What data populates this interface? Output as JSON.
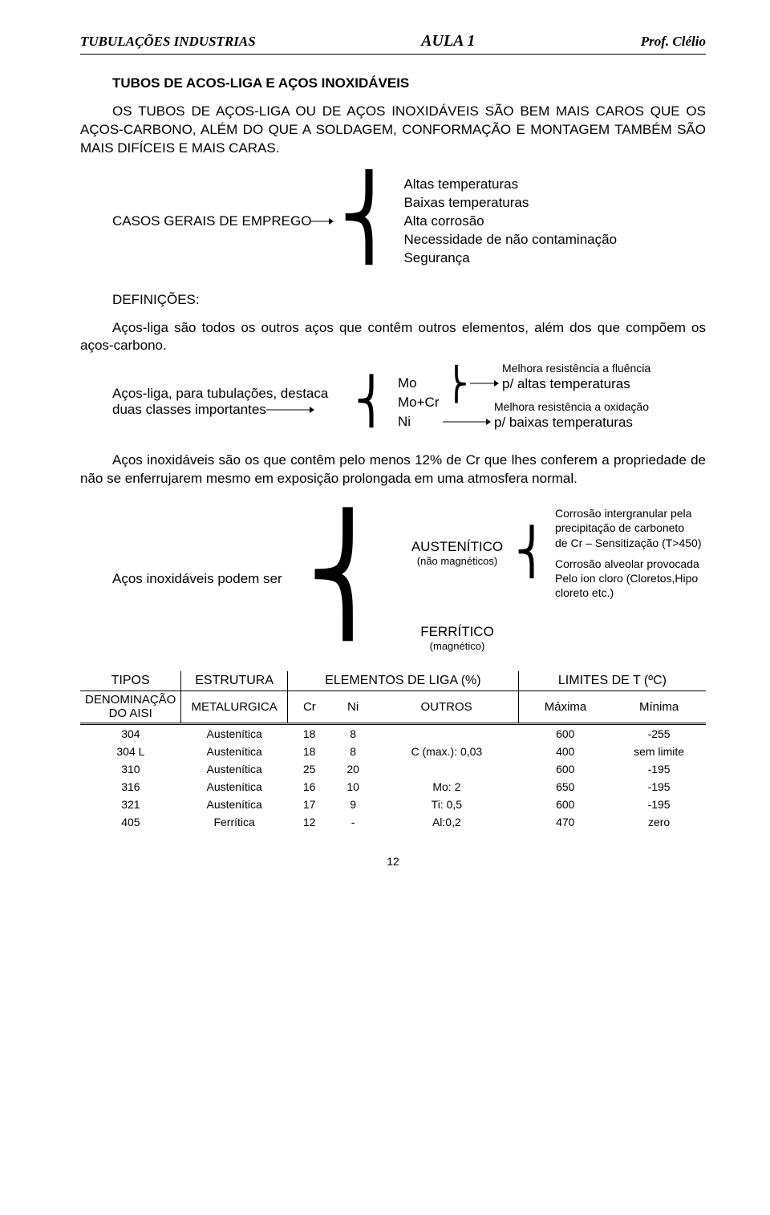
{
  "header": {
    "left": "TUBULAÇÕES INDUSTRIAS",
    "center": "AULA 1",
    "right": "Prof. Clélio"
  },
  "section_title": "TUBOS DE ACOS-LIGA E AÇOS INOXIDÁVEIS",
  "intro_para": "OS TUBOS DE AÇOS-LIGA OU DE AÇOS INOXIDÁVEIS SÃO BEM MAIS CAROS QUE OS AÇOS-CARBONO, ALÉM DO QUE A SOLDAGEM, CONFORMAÇÃO E MONTAGEM TAMBÉM SÃO MAIS DIFÍCEIS E MAIS CARAS.",
  "casos": {
    "label": "CASOS GERAIS DE EMPREGO",
    "items": [
      "Altas temperaturas",
      "Baixas temperaturas",
      "Alta corrosão",
      "Necessidade de não contaminação",
      "Segurança"
    ]
  },
  "definicoes": {
    "title": "DEFINIÇÕES:",
    "para": "Aços-liga são todos os outros aços que contêm outros elementos, além dos que compõem os aços-carbono."
  },
  "classes": {
    "left1": "Aços-liga, para tubulações, destaca",
    "left2": "duas classes importantes",
    "mo": "Mo",
    "mocr": "Mo+Cr",
    "ni": "Ni",
    "note1": "Melhora resistência a fluência",
    "right1": "p/ altas temperaturas",
    "note2": "Melhora resistência a oxidação",
    "right2": "p/ baixas temperaturas"
  },
  "inox_para": "Aços inoxidáveis são os que contêm pelo menos 12% de Cr que lhes conferem a propriedade de não se enferrujarem mesmo em exposição prolongada em uma atmosfera normal.",
  "inox": {
    "left": "Aços inoxidáveis podem ser",
    "aust": "AUSTENÍTICO",
    "aust_sub": "(não magnéticos)",
    "aust_r1a": "Corrosão intergranular pela",
    "aust_r1b": "precipitação de carboneto",
    "aust_r1c": "de Cr – Sensitização (T>450)",
    "aust_r2a": "Corrosão alveolar provocada",
    "aust_r2b": "Pelo ion cloro (Cloretos,Hipo",
    "aust_r2c": "cloreto etc.)",
    "ferr": "FERRÍTICO",
    "ferr_sub": "(magnético)"
  },
  "table": {
    "head1": [
      "TIPOS",
      "ESTRUTURA",
      "ELEMENTOS DE LIGA (%)",
      "LIMITES DE T (ºC)"
    ],
    "head2_left": "DENOMINAÇÃO DO AISI",
    "head2": [
      "METALURGICA",
      "Cr",
      "Ni",
      "OUTROS",
      "Máxima",
      "Mínima"
    ],
    "rows": [
      [
        "304",
        "Austenítica",
        "18",
        "8",
        "",
        "600",
        "-255"
      ],
      [
        "304 L",
        "Austenítica",
        "18",
        "8",
        "C (max.): 0,03",
        "400",
        "sem limite"
      ],
      [
        "310",
        "Austenítica",
        "25",
        "20",
        "",
        "600",
        "-195"
      ],
      [
        "316",
        "Austenítica",
        "16",
        "10",
        "Mo: 2",
        "650",
        "-195"
      ],
      [
        "321",
        "Austenítica",
        "17",
        "9",
        "Ti: 0,5",
        "600",
        "-195"
      ],
      [
        "405",
        "Ferrítica",
        "12",
        "-",
        "Al:0,2",
        "470",
        "zero"
      ]
    ]
  },
  "page_number": "12"
}
